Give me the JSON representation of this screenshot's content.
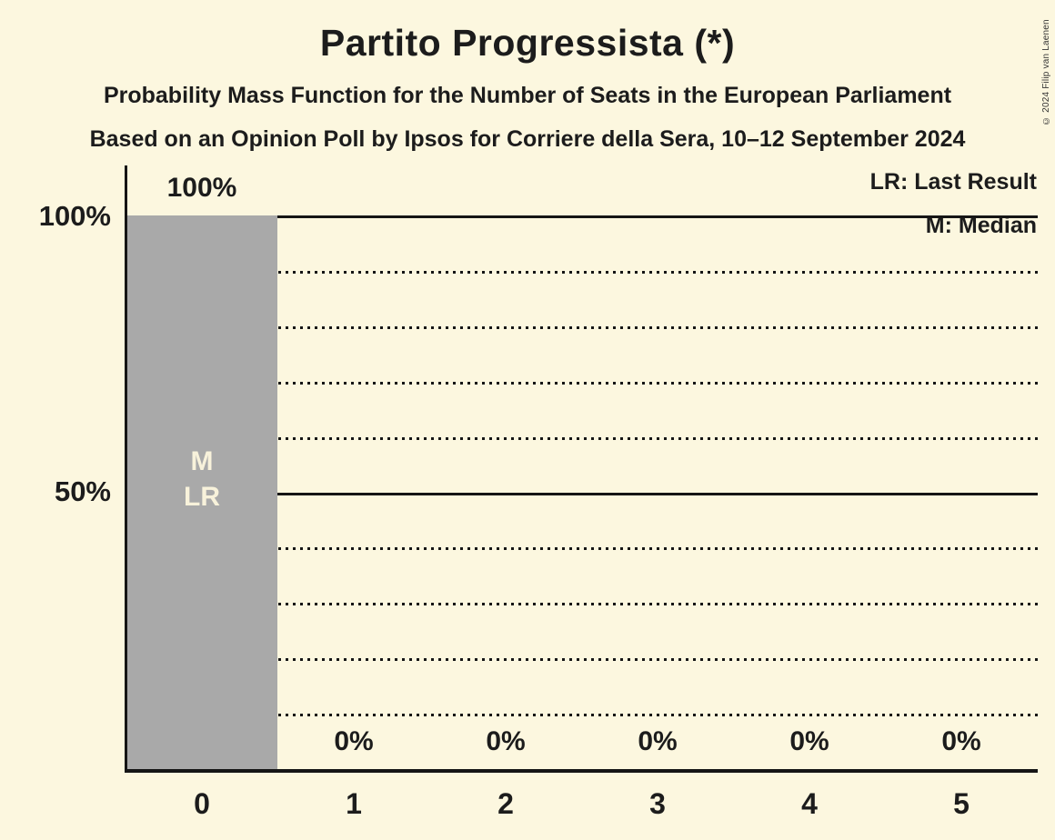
{
  "chart_data": {
    "type": "bar",
    "title": "Partito Progressista (*)",
    "subtitle1": "Probability Mass Function for the Number of Seats in the European Parliament",
    "subtitle2": "Based on an Opinion Poll by Ipsos for Corriere della Sera, 10–12 September 2024",
    "xlabel": "",
    "ylabel": "",
    "categories": [
      "0",
      "1",
      "2",
      "3",
      "4",
      "5"
    ],
    "values": [
      100,
      0,
      0,
      0,
      0,
      0
    ],
    "value_labels": [
      "100%",
      "0%",
      "0%",
      "0%",
      "0%",
      "0%"
    ],
    "ylim": [
      0,
      100
    ],
    "ytick_labels": [
      "100%",
      "50%"
    ],
    "grid": "dotted horizontal lines every 10%, solid lines at 50% and 100%",
    "legend_position": "top-right",
    "legend": {
      "lr": "LR: Last Result",
      "m": "M: Median"
    },
    "bar_annotation": "M\nLR",
    "median_seats": "0",
    "last_result_seats": "0",
    "colors": {
      "background": "#FCF7DF",
      "bar": "#A9A9A9",
      "text": "#1C1C1C",
      "line": "#151515",
      "bar_annotation_text": "#F8F2DB"
    },
    "copyright": "© 2024 Filip van Laenen"
  }
}
